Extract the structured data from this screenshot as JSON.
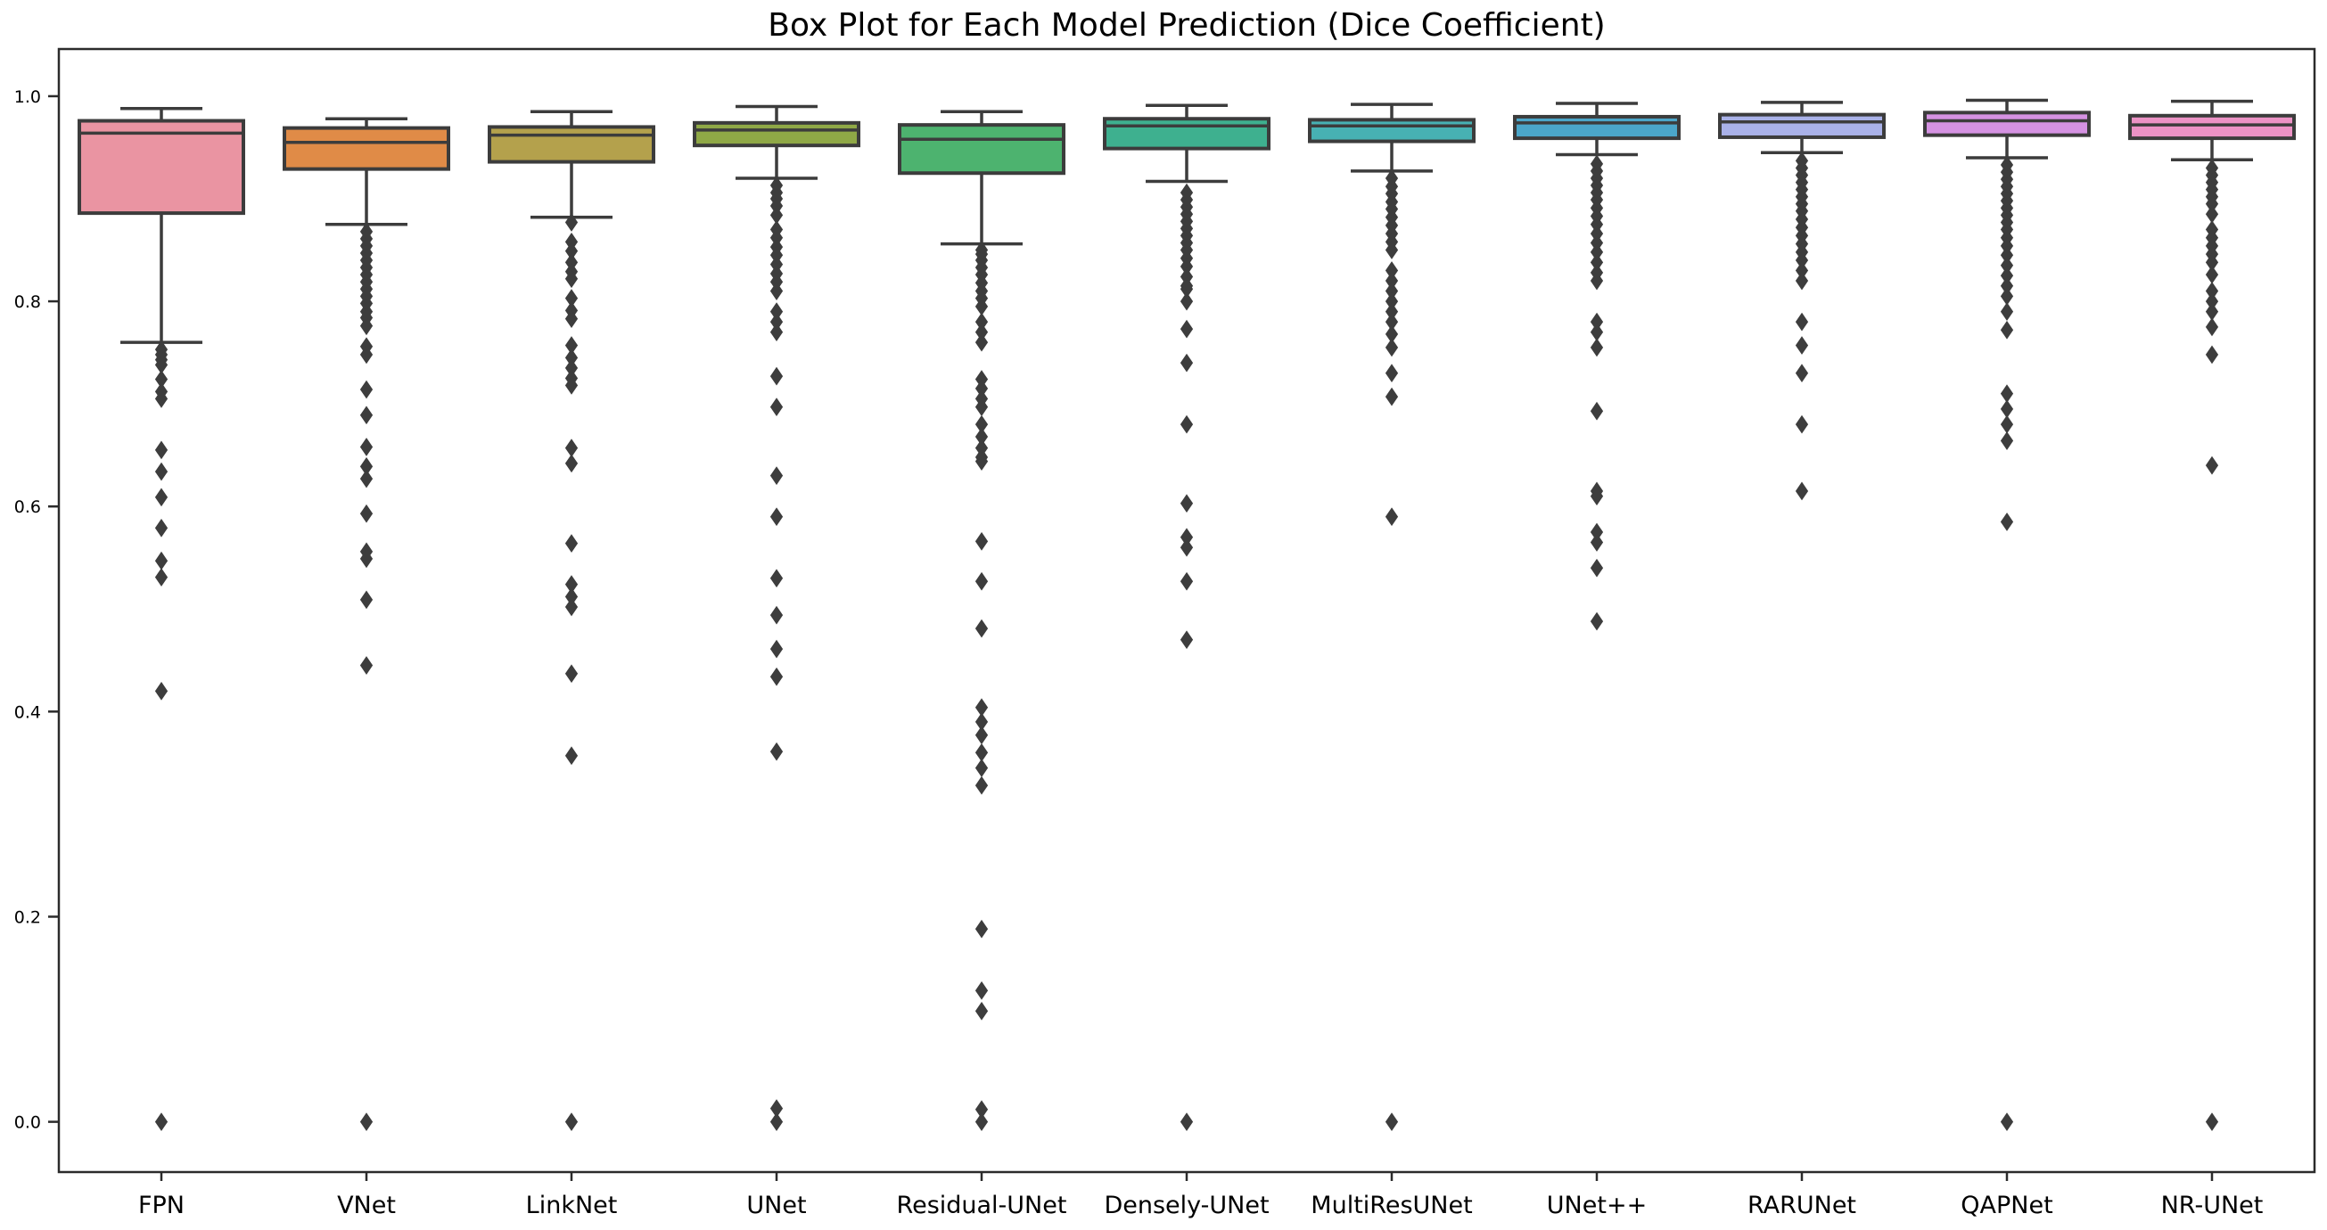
{
  "chart_data": {
    "type": "box",
    "title": "Box Plot for Each Model Prediction (Dice Coefficient)",
    "xlabel": "",
    "ylabel": "",
    "ylim": [
      -0.049,
      1.046
    ],
    "yticks": [
      0.0,
      0.2,
      0.4,
      0.6,
      0.8,
      1.0
    ],
    "ytick_labels": [
      "0.0",
      "0.2",
      "0.4",
      "0.6",
      "0.8",
      "1.0"
    ],
    "grid": false,
    "legend": "none",
    "colors": {
      "edge": "#3c3c3c",
      "flier": "#3d3d3d",
      "spine": "#2b2b2b",
      "background": "#ffffff"
    },
    "models": [
      {
        "name": "FPN",
        "color": "#ea94a2",
        "whisker_low": 0.76,
        "q1": 0.886,
        "median": 0.964,
        "q3": 0.976,
        "whisker_high": 0.988,
        "outliers": [
          0.753,
          0.748,
          0.743,
          0.738,
          0.724,
          0.712,
          0.705,
          0.655,
          0.634,
          0.609,
          0.579,
          0.547,
          0.531,
          0.42,
          0.0
        ]
      },
      {
        "name": "VNet",
        "color": "#e08b47",
        "whisker_low": 0.875,
        "q1": 0.929,
        "median": 0.955,
        "q3": 0.969,
        "whisker_high": 0.978,
        "outliers": [
          0.868,
          0.861,
          0.854,
          0.847,
          0.84,
          0.833,
          0.826,
          0.819,
          0.812,
          0.805,
          0.798,
          0.79,
          0.784,
          0.776,
          0.756,
          0.748,
          0.714,
          0.689,
          0.658,
          0.639,
          0.627,
          0.593,
          0.556,
          0.549,
          0.509,
          0.445,
          0.0
        ]
      },
      {
        "name": "LinkNet",
        "color": "#b4a14c",
        "whisker_low": 0.882,
        "q1": 0.936,
        "median": 0.962,
        "q3": 0.97,
        "whisker_high": 0.985,
        "outliers": [
          0.877,
          0.858,
          0.849,
          0.838,
          0.829,
          0.822,
          0.803,
          0.791,
          0.783,
          0.757,
          0.745,
          0.735,
          0.725,
          0.718,
          0.657,
          0.642,
          0.564,
          0.524,
          0.512,
          0.502,
          0.437,
          0.357,
          0.0
        ]
      },
      {
        "name": "UNet",
        "color": "#8fa846",
        "whisker_low": 0.92,
        "q1": 0.952,
        "median": 0.967,
        "q3": 0.974,
        "whisker_high": 0.99,
        "outliers": [
          0.913,
          0.906,
          0.9,
          0.893,
          0.884,
          0.87,
          0.862,
          0.853,
          0.845,
          0.836,
          0.827,
          0.819,
          0.81,
          0.79,
          0.78,
          0.77,
          0.727,
          0.697,
          0.63,
          0.59,
          0.53,
          0.494,
          0.461,
          0.434,
          0.361,
          0.013,
          0.0
        ]
      },
      {
        "name": "Residual-UNet",
        "color": "#4db36f",
        "whisker_low": 0.856,
        "q1": 0.925,
        "median": 0.958,
        "q3": 0.972,
        "whisker_high": 0.985,
        "outliers": [
          0.85,
          0.846,
          0.84,
          0.833,
          0.826,
          0.818,
          0.81,
          0.803,
          0.795,
          0.78,
          0.77,
          0.76,
          0.724,
          0.715,
          0.705,
          0.697,
          0.68,
          0.668,
          0.657,
          0.648,
          0.644,
          0.566,
          0.527,
          0.481,
          0.404,
          0.39,
          0.377,
          0.36,
          0.345,
          0.328,
          0.188,
          0.128,
          0.108,
          0.012,
          0.0
        ]
      },
      {
        "name": "Densely-UNet",
        "color": "#3eb08f",
        "whisker_low": 0.917,
        "q1": 0.949,
        "median": 0.971,
        "q3": 0.978,
        "whisker_high": 0.991,
        "outliers": [
          0.906,
          0.899,
          0.892,
          0.885,
          0.878,
          0.871,
          0.864,
          0.857,
          0.85,
          0.842,
          0.834,
          0.824,
          0.815,
          0.812,
          0.8,
          0.773,
          0.74,
          0.68,
          0.603,
          0.57,
          0.56,
          0.527,
          0.47,
          0.0
        ]
      },
      {
        "name": "MultiResUNet",
        "color": "#47b1b3",
        "whisker_low": 0.927,
        "q1": 0.956,
        "median": 0.971,
        "q3": 0.977,
        "whisker_high": 0.992,
        "outliers": [
          0.92,
          0.912,
          0.905,
          0.897,
          0.89,
          0.882,
          0.874,
          0.866,
          0.858,
          0.85,
          0.83,
          0.82,
          0.81,
          0.8,
          0.79,
          0.78,
          0.768,
          0.755,
          0.73,
          0.707,
          0.59,
          0.0
        ]
      },
      {
        "name": "UNet++",
        "color": "#4ba6c9",
        "whisker_low": 0.943,
        "q1": 0.959,
        "median": 0.974,
        "q3": 0.98,
        "whisker_high": 0.993,
        "outliers": [
          0.934,
          0.927,
          0.92,
          0.913,
          0.906,
          0.899,
          0.891,
          0.883,
          0.875,
          0.866,
          0.857,
          0.848,
          0.838,
          0.828,
          0.82,
          0.78,
          0.77,
          0.755,
          0.693,
          0.615,
          0.61,
          0.575,
          0.565,
          0.54,
          0.488
        ]
      },
      {
        "name": "RARUNet",
        "color": "#a9b1e8",
        "whisker_low": 0.945,
        "q1": 0.96,
        "median": 0.975,
        "q3": 0.982,
        "whisker_high": 0.994,
        "outliers": [
          0.937,
          0.93,
          0.923,
          0.916,
          0.909,
          0.902,
          0.895,
          0.888,
          0.88,
          0.872,
          0.864,
          0.856,
          0.848,
          0.84,
          0.83,
          0.82,
          0.78,
          0.757,
          0.73,
          0.68,
          0.615
        ]
      },
      {
        "name": "QAPNet",
        "color": "#d592e2",
        "whisker_low": 0.94,
        "q1": 0.962,
        "median": 0.976,
        "q3": 0.984,
        "whisker_high": 0.996,
        "outliers": [
          0.933,
          0.926,
          0.919,
          0.912,
          0.905,
          0.898,
          0.891,
          0.884,
          0.877,
          0.87,
          0.862,
          0.854,
          0.845,
          0.835,
          0.825,
          0.815,
          0.805,
          0.79,
          0.772,
          0.71,
          0.695,
          0.68,
          0.664,
          0.585,
          0.0
        ]
      },
      {
        "name": "NR-UNet",
        "color": "#ec92c5",
        "whisker_low": 0.938,
        "q1": 0.959,
        "median": 0.972,
        "q3": 0.981,
        "whisker_high": 0.995,
        "outliers": [
          0.93,
          0.923,
          0.916,
          0.909,
          0.902,
          0.895,
          0.885,
          0.87,
          0.862,
          0.854,
          0.846,
          0.838,
          0.826,
          0.81,
          0.8,
          0.79,
          0.775,
          0.748,
          0.64,
          0.0
        ]
      }
    ]
  }
}
